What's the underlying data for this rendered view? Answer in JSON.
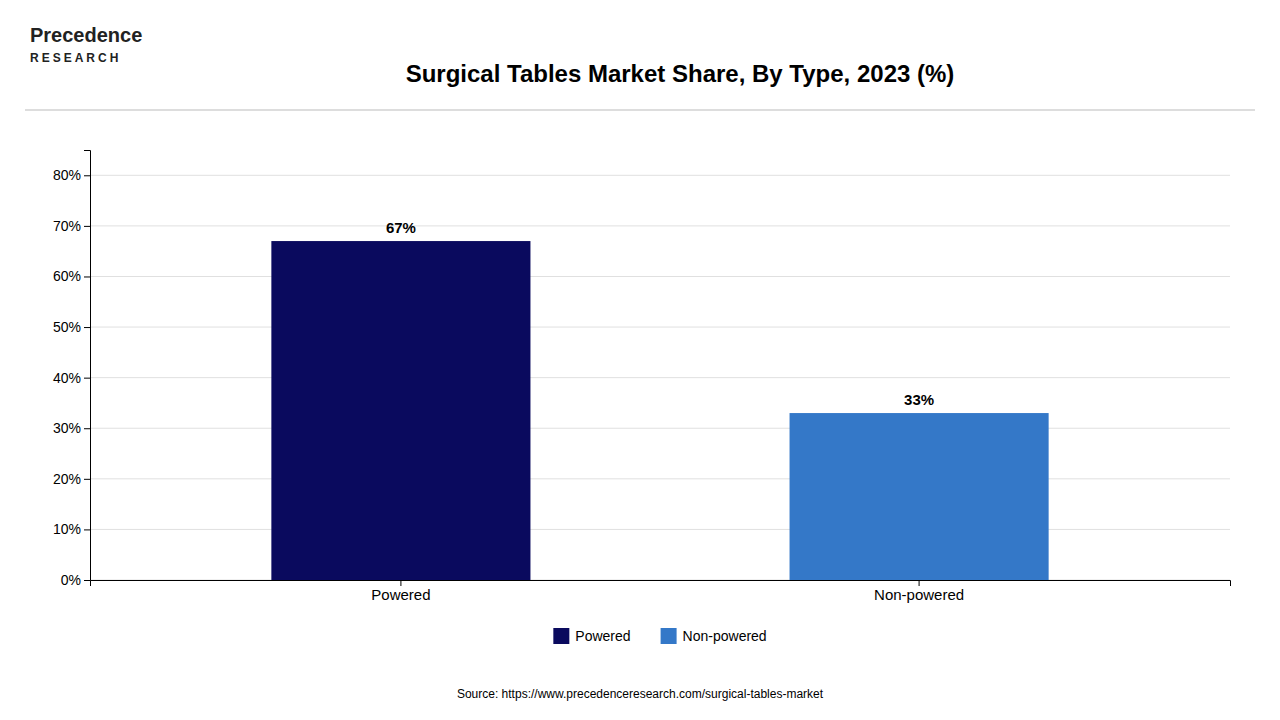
{
  "chart_data": {
    "type": "bar",
    "title": "Surgical Tables Market Share, By Type, 2023 (%)",
    "categories": [
      "Powered",
      "Non-powered"
    ],
    "values": [
      67,
      33
    ],
    "value_labels": [
      "67%",
      "33%"
    ],
    "colors": [
      "#0a0a5e",
      "#3478c8"
    ],
    "ylim": [
      0,
      85
    ],
    "yticks": [
      {
        "value": 0,
        "label": "0%"
      },
      {
        "value": 10,
        "label": "10%"
      },
      {
        "value": 20,
        "label": "20%"
      },
      {
        "value": 30,
        "label": "30%"
      },
      {
        "value": 40,
        "label": "40%"
      },
      {
        "value": 50,
        "label": "50%"
      },
      {
        "value": 60,
        "label": "60%"
      },
      {
        "value": 70,
        "label": "70%"
      },
      {
        "value": 80,
        "label": "80%"
      }
    ],
    "grid": true,
    "data_labels": true,
    "legend": "bottom",
    "annotations": [
      "Precedence",
      "RESEARCH",
      "Source: https://www.precedenceresearch.com/surgical-tables-market"
    ]
  }
}
